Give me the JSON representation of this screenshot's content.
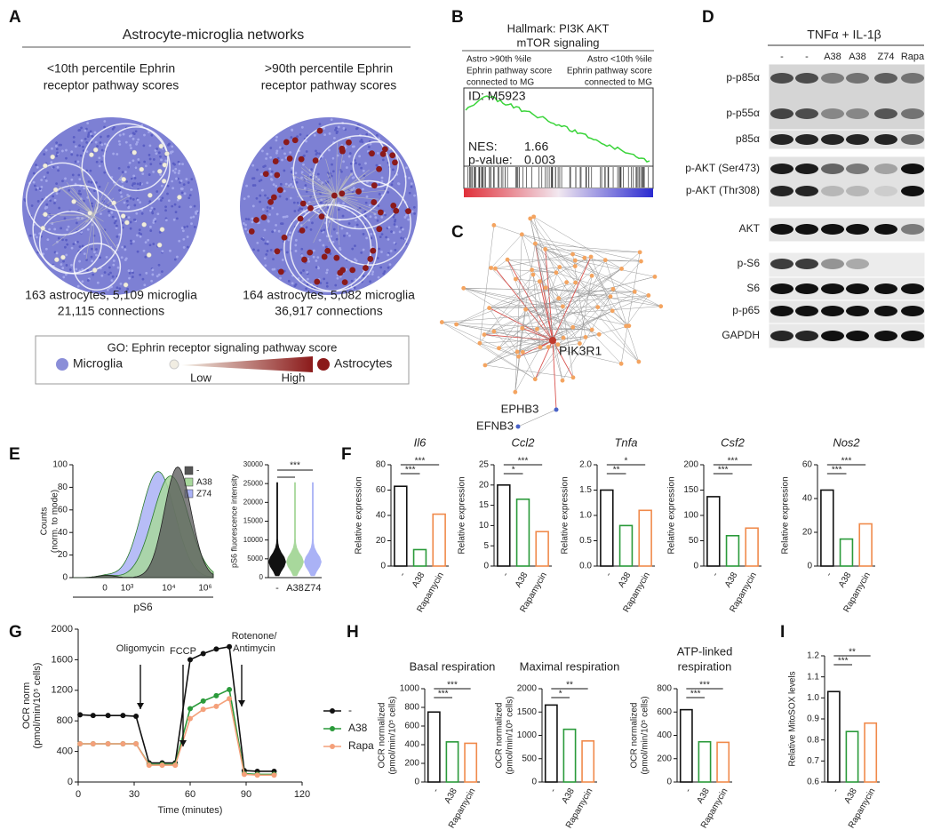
{
  "panel_labels": [
    "A",
    "B",
    "C",
    "D",
    "E",
    "F",
    "G",
    "H",
    "I"
  ],
  "panel_a": {
    "title": "Astrocyte-microglia networks",
    "networks": [
      {
        "subtitle": [
          "<10th percentile Ephrin",
          "receptor pathway scores"
        ],
        "caption": [
          "163 astrocytes, 5,109 microglia",
          "21,115 connections"
        ]
      },
      {
        "subtitle": [
          ">90th percentile Ephrin",
          "receptor pathway scores"
        ],
        "caption": [
          "164 astrocytes, 5,082 microglia",
          "36,917 connections"
        ]
      }
    ],
    "legend": {
      "title": "GO: Ephrin receptor signaling pathway score",
      "microglia": "Microglia",
      "low": "Low",
      "high": "High",
      "astrocytes": "Astrocytes"
    }
  },
  "panel_b": {
    "title": [
      "Hallmark: PI3K AKT",
      "mTOR signaling"
    ],
    "left_group": [
      "Astro >90th %ile",
      "Ephrin pathway score",
      "connected to MG"
    ],
    "right_group": [
      "Astro <10th %ile",
      "Ephrin pathway score",
      "connected to MG"
    ],
    "id": "ID: M5923",
    "nes_label": "NES:",
    "nes": 1.66,
    "p_label": "p-value:",
    "p_value": 0.003
  },
  "panel_c": {
    "labels": [
      "PIK3R1",
      "EPHB3",
      "EFNB3"
    ]
  },
  "panel_d": {
    "treatment": "TNFα + IL-1β",
    "lanes": [
      "-",
      "-",
      "A38",
      "A38",
      "Z74",
      "Rapa"
    ],
    "rows": [
      "p-p85α",
      "p-p55α",
      "p85α",
      "p-AKT (Ser473)",
      "p-AKT (Thr308)",
      "AKT",
      "p-S6",
      "S6",
      "p-p65",
      "GAPDH"
    ]
  },
  "chart_data": [
    {
      "type": "histogram",
      "ylabel": [
        "Counts",
        "(norm. to mode)"
      ],
      "xlabel": "pS6",
      "ylim": [
        0,
        100
      ],
      "yticks": [
        0,
        20,
        40,
        60,
        80,
        100
      ],
      "xtick_labels": [
        "0",
        "10³",
        "10⁴",
        "10⁶"
      ],
      "legend": [
        {
          "name": "-",
          "color": "#555555"
        },
        {
          "name": "A38",
          "color": "#a8d89c"
        },
        {
          "name": "Z74",
          "color": "#aab2f6"
        }
      ]
    },
    {
      "type": "violin",
      "ylabel": [
        "pS6 fluorescence intensity"
      ],
      "ylim": [
        0,
        30000
      ],
      "yticks": [
        0,
        5000,
        10000,
        15000,
        20000,
        25000,
        30000
      ],
      "categories": [
        "-",
        "A38",
        "Z74"
      ],
      "colors": [
        "#111111",
        "#a8d89c",
        "#aab2f6"
      ],
      "significance": [
        "***"
      ]
    },
    {
      "type": "bar",
      "title": [
        "Il6"
      ],
      "title_style": "italic",
      "ylabel": [
        "Relative expression"
      ],
      "categories": [
        "-",
        "A38",
        "Rapamycin"
      ],
      "values": [
        63,
        13,
        41
      ],
      "colors": [
        "#111111",
        "#2a9a3a",
        "#f08a4b"
      ],
      "ylim": [
        0,
        80
      ],
      "yticks": [
        0,
        20,
        40,
        60,
        80
      ],
      "significance": [
        "***",
        "***"
      ]
    },
    {
      "type": "bar",
      "title": [
        "Ccl2"
      ],
      "title_style": "italic",
      "ylabel": [
        "Relative expression"
      ],
      "categories": [
        "-",
        "A38",
        "Rapamycin"
      ],
      "values": [
        20,
        16.5,
        8.5
      ],
      "colors": [
        "#111111",
        "#2a9a3a",
        "#f08a4b"
      ],
      "ylim": [
        0,
        25
      ],
      "yticks": [
        0,
        5,
        10,
        15,
        20,
        25
      ],
      "significance": [
        "*",
        "***"
      ]
    },
    {
      "type": "bar",
      "title": [
        "Tnfa"
      ],
      "title_style": "italic",
      "ylabel": [
        "Relative expression"
      ],
      "categories": [
        "-",
        "A38",
        "Rapamycin"
      ],
      "values": [
        1.5,
        0.8,
        1.1
      ],
      "colors": [
        "#111111",
        "#2a9a3a",
        "#f08a4b"
      ],
      "ylim": [
        0,
        2
      ],
      "yticks": [
        {
          "value": 0,
          "label": "0.0"
        },
        0.5,
        {
          "value": 1,
          "label": "1.0"
        },
        1.5,
        {
          "value": 2,
          "label": "2.0"
        }
      ],
      "significance": [
        "**",
        "*"
      ]
    },
    {
      "type": "bar",
      "title": [
        "Csf2"
      ],
      "title_style": "italic",
      "ylabel": [
        "Relative expression"
      ],
      "categories": [
        "-",
        "A38",
        "Rapamycin"
      ],
      "values": [
        137,
        60,
        75
      ],
      "colors": [
        "#111111",
        "#2a9a3a",
        "#f08a4b"
      ],
      "ylim": [
        0,
        200
      ],
      "yticks": [
        0,
        50,
        100,
        150,
        200
      ],
      "significance": [
        "***",
        "***"
      ]
    },
    {
      "type": "bar",
      "title": [
        "Nos2"
      ],
      "title_style": "italic",
      "ylabel": [
        "Relative expression"
      ],
      "categories": [
        "-",
        "A38",
        "Rapamycin"
      ],
      "values": [
        45,
        16,
        25
      ],
      "colors": [
        "#111111",
        "#2a9a3a",
        "#f08a4b"
      ],
      "ylim": [
        0,
        60
      ],
      "yticks": [
        0,
        20,
        40,
        60
      ],
      "significance": [
        "***",
        "***"
      ]
    },
    {
      "type": "line",
      "ylabel": [
        "OCR norm",
        "(pmol/min/10⁵ cells)"
      ],
      "xlabel": "Time (minutes)",
      "x": [
        1,
        8,
        16,
        24,
        31,
        38,
        45,
        52,
        60,
        67,
        74,
        81,
        89,
        96,
        105
      ],
      "series": [
        {
          "name": "-",
          "color": "#111111",
          "values": [
            880,
            870,
            870,
            870,
            860,
            250,
            250,
            250,
            1600,
            1680,
            1740,
            1770,
            150,
            140,
            140
          ]
        },
        {
          "name": "A38",
          "color": "#2a9a3a",
          "values": [
            500,
            500,
            500,
            500,
            500,
            230,
            230,
            230,
            960,
            1060,
            1130,
            1210,
            110,
            100,
            100
          ]
        },
        {
          "name": "Rapa",
          "color": "#f4a07a",
          "values": [
            500,
            500,
            500,
            500,
            500,
            220,
            220,
            220,
            830,
            950,
            990,
            1090,
            100,
            90,
            90
          ]
        }
      ],
      "xlim": [
        0,
        120
      ],
      "xticks": [
        0,
        30,
        60,
        90,
        120
      ],
      "ylim": [
        0,
        2000
      ],
      "yticks": [
        0,
        400,
        800,
        1200,
        1600,
        2000
      ],
      "annotations": [
        [
          "Oligomycin"
        ],
        [
          "FCCP"
        ],
        [
          "Rotenone/",
          "Antimycin"
        ]
      ]
    },
    {
      "type": "bar",
      "title": [
        "Basal respiration"
      ],
      "ylabel": [
        "OCR normalized",
        "(pmol/min/10⁵ cells)"
      ],
      "categories": [
        "-",
        "A38",
        "Rapamycin"
      ],
      "values": [
        750,
        430,
        415
      ],
      "colors": [
        "#111111",
        "#2a9a3a",
        "#f08a4b"
      ],
      "ylim": [
        0,
        1000
      ],
      "yticks": [
        0,
        200,
        400,
        600,
        800,
        1000
      ],
      "significance": [
        "***",
        "***"
      ]
    },
    {
      "type": "bar",
      "title": [
        "Maximal respiration"
      ],
      "ylabel": [
        "OCR normalized",
        "(pmol/min/10⁵ cells)"
      ],
      "categories": [
        "-",
        "A38",
        "Rapamycin"
      ],
      "values": [
        1650,
        1130,
        880
      ],
      "colors": [
        "#111111",
        "#2a9a3a",
        "#f08a4b"
      ],
      "ylim": [
        0,
        2000
      ],
      "yticks": [
        0,
        500,
        1000,
        1500,
        2000
      ],
      "significance": [
        "*",
        "**"
      ]
    },
    {
      "type": "bar",
      "title": [
        "ATP-linked",
        "respiration"
      ],
      "ylabel": [
        "OCR normalized",
        "(pmol/min/10⁵ cells)"
      ],
      "categories": [
        "-",
        "A38",
        "Rapamycin"
      ],
      "values": [
        620,
        345,
        340
      ],
      "colors": [
        "#111111",
        "#2a9a3a",
        "#f08a4b"
      ],
      "ylim": [
        0,
        800
      ],
      "yticks": [
        0,
        200,
        400,
        600,
        800
      ],
      "significance": [
        "***",
        "***"
      ]
    },
    {
      "type": "bar",
      "ylabel": [
        "Relative MitoSOX levels"
      ],
      "categories": [
        "-",
        "A38",
        "Rapamycin"
      ],
      "values": [
        1.03,
        0.84,
        0.88
      ],
      "colors": [
        "#111111",
        "#2a9a3a",
        "#f08a4b"
      ],
      "ylim": [
        0.6,
        1.2
      ],
      "yticks": [
        0.6,
        0.7,
        0.8,
        0.9,
        {
          "value": 1,
          "label": "1.0"
        },
        1.1,
        1.2
      ],
      "significance": [
        "***",
        "**"
      ]
    }
  ]
}
